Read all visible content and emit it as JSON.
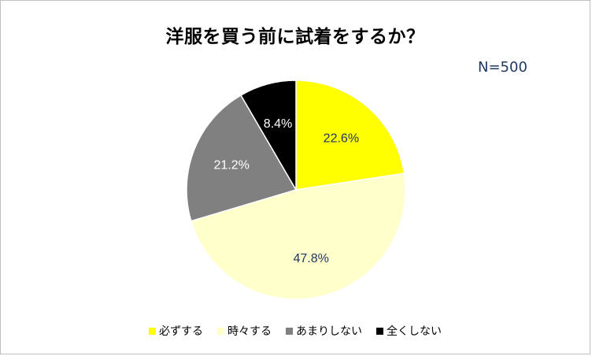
{
  "chart_data": {
    "type": "pie",
    "title": "洋服を買う前に試着をするか？",
    "annotation": "N=500",
    "categories": [
      "必ずする",
      "時々する",
      "あまりしない",
      "全くしない"
    ],
    "values": [
      22.6,
      47.8,
      21.2,
      8.4
    ],
    "data_labels": [
      "22.6%",
      "47.8%",
      "21.2%",
      "8.4%"
    ],
    "colors": [
      "#ffff00",
      "#ffffcc",
      "#808080",
      "#000000"
    ],
    "label_colors": [
      "#1f3864",
      "#1f3864",
      "#ffffff",
      "#ffffff"
    ],
    "start_angle": "12 o'clock",
    "direction": "clockwise",
    "legend_position": "bottom"
  }
}
